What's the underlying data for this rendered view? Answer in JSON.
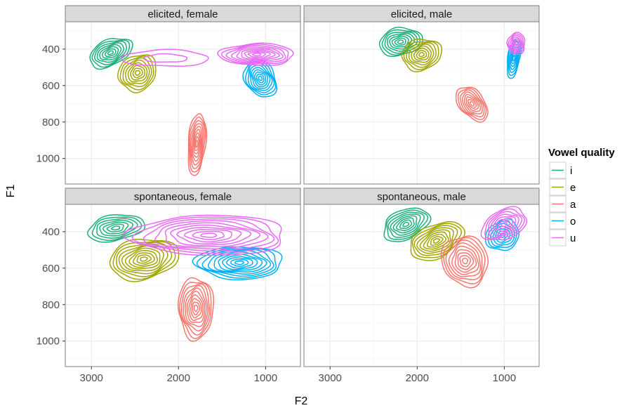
{
  "chart_data": {
    "type": "contour",
    "xlabel": "F2",
    "ylabel": "F1",
    "x_reversed": true,
    "y_reversed": true,
    "xlim": [
      3300,
      600
    ],
    "ylim": [
      1140,
      250
    ],
    "x_ticks": [
      3000,
      2000,
      1000
    ],
    "y_ticks": [
      400,
      600,
      800,
      1000
    ],
    "grid": true,
    "legend": {
      "title": "Vowel quality",
      "position": "right",
      "entries": [
        {
          "label": "i",
          "color": "#1bb07a"
        },
        {
          "label": "e",
          "color": "#a3a500"
        },
        {
          "label": "a",
          "color": "#f8766d"
        },
        {
          "label": "o",
          "color": "#00b0f6"
        },
        {
          "label": "u",
          "color": "#e76bf3"
        }
      ]
    },
    "panels": [
      {
        "label": "elicited, female",
        "clusters": [
          {
            "vowel": "i",
            "f2": 2780,
            "f1": 420,
            "sf2": 260,
            "sf1": 70,
            "rot": -25,
            "levels": 8
          },
          {
            "vowel": "e",
            "f2": 2470,
            "f1": 530,
            "sf2": 230,
            "sf1": 95,
            "rot": -40,
            "levels": 8
          },
          {
            "vowel": "a",
            "f2": 1790,
            "f1": 920,
            "sf2": 100,
            "sf1": 170,
            "rot": 5,
            "levels": 9
          },
          {
            "vowel": "o",
            "f2": 1060,
            "f1": 560,
            "sf2": 170,
            "sf1": 110,
            "rot": -30,
            "levels": 9
          },
          {
            "vowel": "u",
            "f2": 1100,
            "f1": 430,
            "sf2": 430,
            "sf1": 60,
            "rot": 0,
            "levels": 9
          },
          {
            "vowel": "u",
            "f2": 2150,
            "f1": 450,
            "sf2": 500,
            "sf1": 45,
            "rot": 0,
            "levels": 2
          }
        ]
      },
      {
        "label": "elicited, male",
        "clusters": [
          {
            "vowel": "i",
            "f2": 2190,
            "f1": 360,
            "sf2": 250,
            "sf1": 75,
            "rot": -10,
            "levels": 8
          },
          {
            "vowel": "e",
            "f2": 1950,
            "f1": 430,
            "sf2": 230,
            "sf1": 85,
            "rot": -15,
            "levels": 8
          },
          {
            "vowel": "a",
            "f2": 1370,
            "f1": 700,
            "sf2": 140,
            "sf1": 110,
            "rot": -40,
            "levels": 8
          },
          {
            "vowel": "o",
            "f2": 890,
            "f1": 450,
            "sf2": 70,
            "sf1": 110,
            "rot": 10,
            "levels": 7
          },
          {
            "vowel": "u",
            "f2": 860,
            "f1": 370,
            "sf2": 100,
            "sf1": 60,
            "rot": 0,
            "levels": 7
          }
        ]
      },
      {
        "label": "spontaneous, female",
        "clusters": [
          {
            "vowel": "i",
            "f2": 2720,
            "f1": 380,
            "sf2": 330,
            "sf1": 70,
            "rot": -10,
            "levels": 7
          },
          {
            "vowel": "e",
            "f2": 2400,
            "f1": 550,
            "sf2": 400,
            "sf1": 110,
            "rot": -10,
            "levels": 10
          },
          {
            "vowel": "a",
            "f2": 1800,
            "f1": 820,
            "sf2": 200,
            "sf1": 170,
            "rot": 0,
            "levels": 10
          },
          {
            "vowel": "o",
            "f2": 1300,
            "f1": 570,
            "sf2": 500,
            "sf1": 90,
            "rot": 0,
            "levels": 10
          },
          {
            "vowel": "u",
            "f2": 1650,
            "f1": 420,
            "sf2": 900,
            "sf1": 110,
            "rot": 0,
            "levels": 10
          }
        ]
      },
      {
        "label": "spontaneous, male",
        "clusters": [
          {
            "vowel": "i",
            "f2": 2130,
            "f1": 360,
            "sf2": 280,
            "sf1": 80,
            "rot": -25,
            "levels": 8
          },
          {
            "vowel": "e",
            "f2": 1780,
            "f1": 450,
            "sf2": 330,
            "sf1": 90,
            "rot": -25,
            "levels": 9
          },
          {
            "vowel": "a",
            "f2": 1450,
            "f1": 560,
            "sf2": 260,
            "sf1": 140,
            "rot": -25,
            "levels": 9
          },
          {
            "vowel": "o",
            "f2": 1020,
            "f1": 420,
            "sf2": 200,
            "sf1": 80,
            "rot": -30,
            "levels": 7
          },
          {
            "vowel": "u",
            "f2": 1000,
            "f1": 360,
            "sf2": 270,
            "sf1": 80,
            "rot": -25,
            "levels": 8
          }
        ]
      }
    ]
  }
}
